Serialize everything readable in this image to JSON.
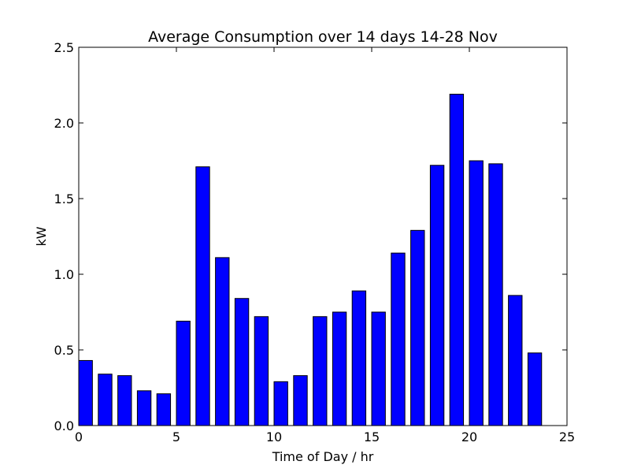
{
  "chart_data": {
    "type": "bar",
    "title": "Average Consumption over 14 days 14-28 Nov",
    "xlabel": "Time of Day / hr",
    "ylabel": "kW",
    "xlim": [
      0,
      25
    ],
    "ylim": [
      0,
      2.5
    ],
    "bar_width": 0.7,
    "bar_color": "#0000ff",
    "grid": false,
    "x_ticks": [
      0,
      5,
      10,
      15,
      20,
      25
    ],
    "x_tick_labels": [
      "0",
      "5",
      "10",
      "15",
      "20",
      "25"
    ],
    "y_ticks": [
      0,
      0.5,
      1.0,
      1.5,
      2.0,
      2.5
    ],
    "y_tick_labels": [
      "0.0",
      "0.5",
      "1.0",
      "1.5",
      "2.0",
      "2.5"
    ],
    "x": [
      0,
      1,
      2,
      3,
      4,
      5,
      6,
      7,
      8,
      9,
      10,
      11,
      12,
      13,
      14,
      15,
      16,
      17,
      18,
      19,
      20,
      21,
      22,
      23
    ],
    "values": [
      0.43,
      0.34,
      0.33,
      0.23,
      0.21,
      0.69,
      1.71,
      1.11,
      0.84,
      0.72,
      0.29,
      0.33,
      0.72,
      0.75,
      0.89,
      0.75,
      1.14,
      1.29,
      1.72,
      2.19,
      1.75,
      1.73,
      0.86,
      0.48
    ]
  }
}
